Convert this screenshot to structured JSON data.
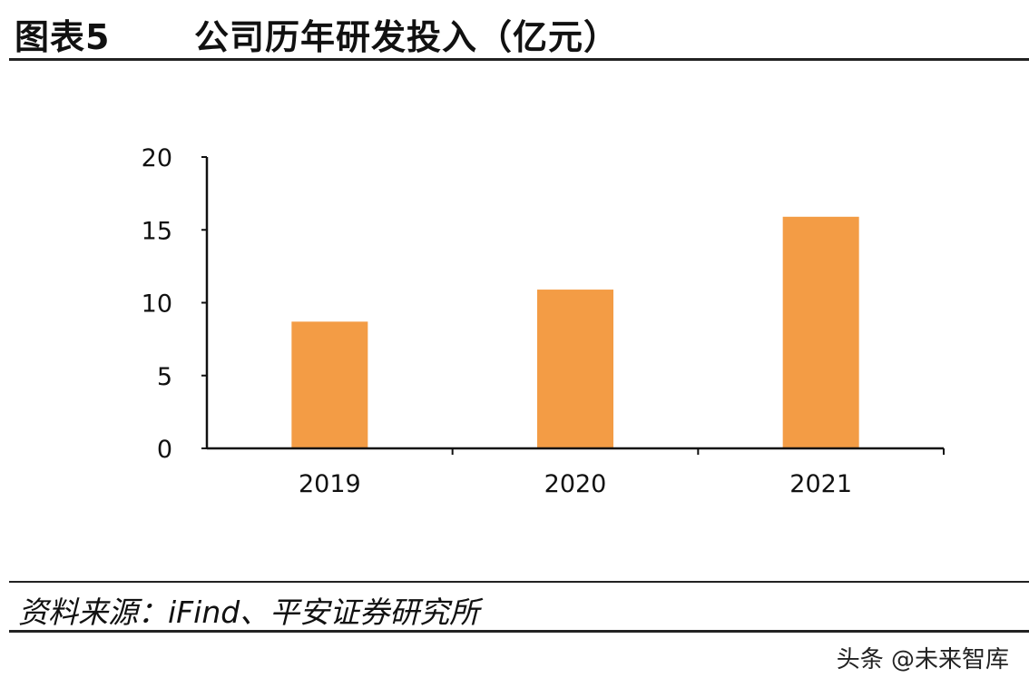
{
  "figure": {
    "number": "图表5",
    "title": "公司历年研发投入（亿元）"
  },
  "chart_data": {
    "type": "bar",
    "title": "公司历年研发投入（亿元）",
    "categories": [
      "2019",
      "2020",
      "2021"
    ],
    "values": [
      8.7,
      10.9,
      15.9
    ],
    "ylim": [
      0,
      20
    ],
    "yticks": [
      "0",
      "5",
      "10",
      "15",
      "20"
    ],
    "bar_color": "#F39C45",
    "axis_color": "#111111",
    "grid": false,
    "legend": "none",
    "xlabel": "",
    "ylabel": ""
  },
  "source": "资料来源：iFind、平安证券研究所",
  "watermark": "头条 @未来智库"
}
